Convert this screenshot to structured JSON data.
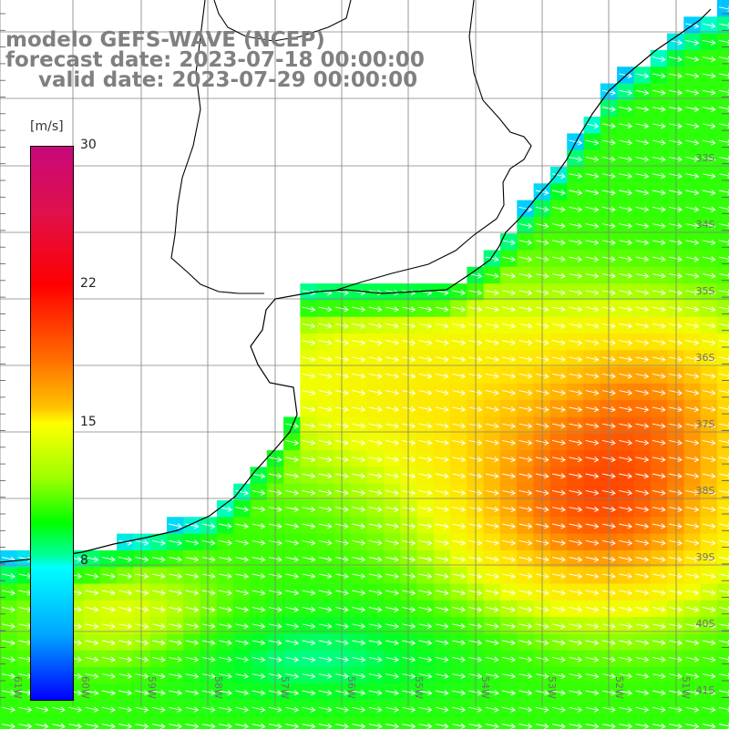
{
  "title": {
    "line1": "modelo GEFS-WAVE (NCEP)",
    "line2": "forecast date: 2023-07-18 00:00:00",
    "line3": "valid date: 2023-07-29 00:00:00"
  },
  "colorbar": {
    "unit": "[m/s]",
    "ticks": [
      "30",
      "22",
      "15",
      "8"
    ],
    "min": 0,
    "max": 30
  },
  "map": {
    "lat_labels": [
      "33S",
      "34S",
      "35S",
      "36S",
      "37S",
      "38S",
      "39S",
      "40S",
      "41S"
    ],
    "lon_labels": [
      "61W",
      "60W",
      "59W",
      "58W",
      "57W",
      "56W",
      "55W",
      "54W",
      "53W",
      "52W",
      "51W"
    ],
    "field": "wind speed",
    "unit": "m/s"
  },
  "colors": {
    "land": "#ffffff",
    "coastline": "#000000",
    "grid": "#808080",
    "title_text": "#808080",
    "arrow": "#ffffff"
  }
}
